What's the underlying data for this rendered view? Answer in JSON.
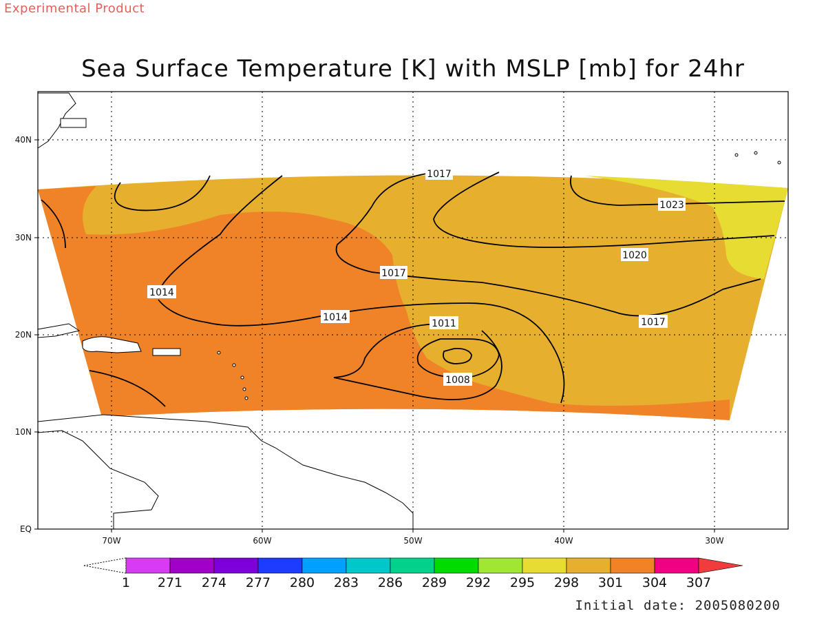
{
  "badge": "Experimental Product",
  "title": "Sea Surface Temperature [K] with MSLP [mb] for 24hr",
  "initial_date": "Initial date: 2005080200",
  "axes": {
    "lat_ticks": [
      "40N",
      "30N",
      "20N",
      "10N",
      "EQ"
    ],
    "lon_ticks": [
      "70W",
      "60W",
      "50W",
      "40W",
      "30W"
    ]
  },
  "contour_labels": [
    "1017",
    "1023",
    "1020",
    "1017",
    "1014",
    "1014",
    "1017",
    "1011",
    "1008"
  ],
  "colorbar": {
    "labels": [
      "1",
      "271",
      "274",
      "277",
      "280",
      "283",
      "286",
      "289",
      "292",
      "295",
      "298",
      "301",
      "304",
      "307"
    ],
    "colors": [
      "#d63cf2",
      "#a000c8",
      "#7d00dc",
      "#1e3cff",
      "#00a0ff",
      "#00c8c8",
      "#00d28c",
      "#00dc00",
      "#a0e632",
      "#e6dc32",
      "#e6af2d",
      "#f08228",
      "#f00082",
      "#f03c3c"
    ]
  },
  "map_colors": {
    "sst_298": "#e6dc32",
    "sst_301": "#e6af2d",
    "sst_304": "#f08228"
  }
}
